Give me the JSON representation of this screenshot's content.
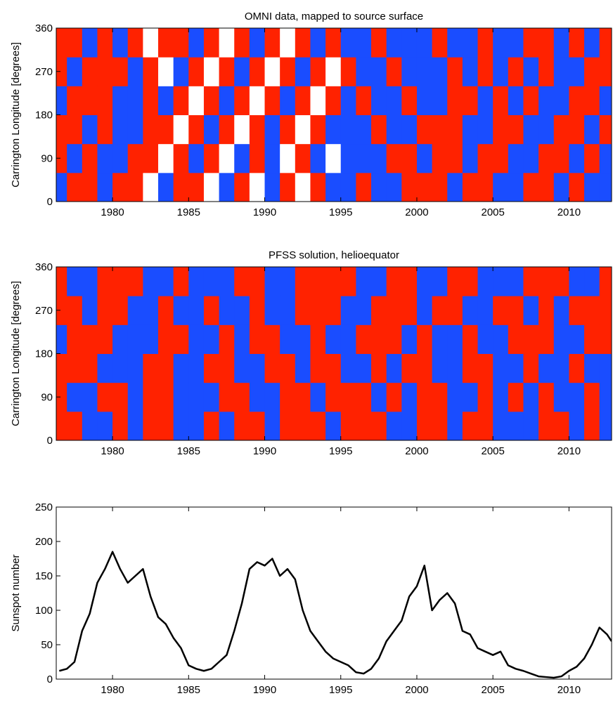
{
  "chart_data": [
    {
      "type": "heatmap",
      "title": "OMNI data, mapped to source surface",
      "y_label": "Carrington Longitude [degrees]",
      "xlim": [
        1976.3,
        2012.8
      ],
      "xticks": [
        1980,
        1985,
        1990,
        1995,
        2000,
        2005,
        2010
      ],
      "ylim": [
        0,
        360
      ],
      "yticks": [
        0,
        90,
        180,
        270,
        360
      ],
      "positive_color": "#ff2200",
      "negative_color": "#1a4dff",
      "zero_color": "#ffffff",
      "x_bins": [
        1976,
        1977,
        1978,
        1979,
        1980,
        1981,
        1982,
        1983,
        1984,
        1985,
        1986,
        1987,
        1988,
        1989,
        1990,
        1991,
        1992,
        1993,
        1994,
        1995,
        1996,
        1997,
        1998,
        1999,
        2000,
        2001,
        2002,
        2003,
        2004,
        2005,
        2006,
        2007,
        2008,
        2009,
        2010,
        2011,
        2012,
        2013
      ],
      "y_bins": [
        0,
        60,
        120,
        180,
        240,
        300,
        360
      ],
      "z": [
        [
          -1,
          1,
          1,
          -1,
          1,
          1,
          0,
          -1,
          1,
          1,
          0,
          -1,
          1,
          0,
          -1,
          1,
          0,
          1,
          -1,
          -1,
          1,
          -1,
          -1,
          1,
          1,
          1,
          -1,
          1,
          1,
          -1,
          -1,
          1,
          1,
          -1,
          1,
          -1,
          -1
        ],
        [
          1,
          -1,
          1,
          -1,
          -1,
          1,
          1,
          0,
          1,
          -1,
          1,
          0,
          -1,
          1,
          -1,
          0,
          1,
          -1,
          0,
          -1,
          -1,
          -1,
          1,
          1,
          -1,
          1,
          1,
          -1,
          1,
          1,
          -1,
          -1,
          1,
          1,
          -1,
          1,
          -1
        ],
        [
          1,
          1,
          -1,
          1,
          -1,
          -1,
          1,
          1,
          0,
          1,
          -1,
          1,
          0,
          1,
          -1,
          1,
          0,
          1,
          -1,
          -1,
          -1,
          1,
          -1,
          -1,
          1,
          1,
          1,
          -1,
          -1,
          1,
          1,
          -1,
          -1,
          1,
          1,
          -1,
          1
        ],
        [
          -1,
          1,
          1,
          1,
          -1,
          -1,
          1,
          -1,
          1,
          0,
          1,
          -1,
          1,
          0,
          1,
          -1,
          1,
          0,
          1,
          -1,
          1,
          -1,
          -1,
          1,
          -1,
          -1,
          1,
          1,
          -1,
          1,
          -1,
          1,
          -1,
          -1,
          1,
          1,
          -1
        ],
        [
          1,
          -1,
          1,
          1,
          1,
          -1,
          1,
          0,
          -1,
          1,
          0,
          1,
          -1,
          1,
          0,
          1,
          -1,
          1,
          0,
          1,
          -1,
          -1,
          1,
          -1,
          -1,
          -1,
          1,
          -1,
          1,
          -1,
          1,
          -1,
          1,
          -1,
          -1,
          1,
          1
        ],
        [
          1,
          1,
          -1,
          1,
          -1,
          1,
          0,
          1,
          1,
          -1,
          1,
          0,
          1,
          -1,
          1,
          0,
          1,
          -1,
          1,
          -1,
          -1,
          1,
          -1,
          -1,
          -1,
          1,
          -1,
          -1,
          1,
          -1,
          -1,
          1,
          1,
          -1,
          1,
          -1,
          1
        ]
      ]
    },
    {
      "type": "heatmap",
      "title": "PFSS solution, helioequator",
      "y_label": "Carrington Longitude [degrees]",
      "xlim": [
        1976.3,
        2012.8
      ],
      "xticks": [
        1980,
        1985,
        1990,
        1995,
        2000,
        2005,
        2010
      ],
      "ylim": [
        0,
        360
      ],
      "yticks": [
        0,
        90,
        180,
        270,
        360
      ],
      "positive_color": "#ff2200",
      "negative_color": "#1a4dff",
      "zero_color": "#ffffff",
      "x_bins": [
        1976,
        1977,
        1978,
        1979,
        1980,
        1981,
        1982,
        1983,
        1984,
        1985,
        1986,
        1987,
        1988,
        1989,
        1990,
        1991,
        1992,
        1993,
        1994,
        1995,
        1996,
        1997,
        1998,
        1999,
        2000,
        2001,
        2002,
        2003,
        2004,
        2005,
        2006,
        2007,
        2008,
        2009,
        2010,
        2011,
        2012,
        2013
      ],
      "y_bins": [
        0,
        60,
        120,
        180,
        240,
        300,
        360
      ],
      "z": [
        [
          1,
          1,
          -1,
          -1,
          1,
          -1,
          1,
          1,
          -1,
          -1,
          1,
          -1,
          1,
          1,
          -1,
          1,
          1,
          1,
          -1,
          1,
          1,
          1,
          -1,
          -1,
          1,
          1,
          -1,
          1,
          1,
          -1,
          -1,
          -1,
          1,
          1,
          -1,
          1,
          -1
        ],
        [
          1,
          -1,
          -1,
          1,
          1,
          -1,
          1,
          1,
          -1,
          -1,
          -1,
          1,
          1,
          -1,
          -1,
          1,
          1,
          -1,
          1,
          1,
          1,
          -1,
          1,
          -1,
          1,
          1,
          -1,
          -1,
          1,
          -1,
          1,
          -1,
          1,
          -1,
          -1,
          1,
          -1
        ],
        [
          1,
          1,
          1,
          -1,
          -1,
          -1,
          1,
          1,
          -1,
          -1,
          1,
          1,
          -1,
          -1,
          1,
          1,
          -1,
          1,
          1,
          -1,
          -1,
          1,
          -1,
          1,
          1,
          -1,
          -1,
          1,
          1,
          -1,
          -1,
          1,
          -1,
          -1,
          1,
          -1,
          -1
        ],
        [
          -1,
          1,
          1,
          1,
          -1,
          -1,
          -1,
          1,
          1,
          -1,
          -1,
          1,
          -1,
          1,
          1,
          -1,
          -1,
          1,
          -1,
          -1,
          1,
          1,
          1,
          -1,
          1,
          -1,
          -1,
          1,
          -1,
          -1,
          1,
          1,
          1,
          -1,
          -1,
          1,
          1
        ],
        [
          1,
          1,
          -1,
          1,
          1,
          -1,
          -1,
          1,
          -1,
          -1,
          1,
          -1,
          -1,
          1,
          -1,
          -1,
          1,
          1,
          1,
          -1,
          -1,
          1,
          1,
          1,
          -1,
          1,
          1,
          -1,
          -1,
          1,
          1,
          -1,
          1,
          -1,
          1,
          1,
          1
        ],
        [
          1,
          -1,
          -1,
          1,
          1,
          1,
          -1,
          -1,
          1,
          -1,
          -1,
          -1,
          1,
          1,
          -1,
          -1,
          1,
          1,
          1,
          1,
          -1,
          -1,
          1,
          1,
          -1,
          -1,
          1,
          1,
          -1,
          -1,
          -1,
          1,
          1,
          1,
          -1,
          -1,
          1
        ]
      ]
    },
    {
      "type": "line",
      "y_label": "Sunspot number",
      "color": "#000000",
      "xlim": [
        1976.3,
        2012.8
      ],
      "xticks": [
        1980,
        1985,
        1990,
        1995,
        2000,
        2005,
        2010
      ],
      "ylim": [
        0,
        250
      ],
      "yticks": [
        0,
        50,
        100,
        150,
        200,
        250
      ],
      "x": [
        1976.5,
        1977,
        1977.5,
        1978,
        1978.5,
        1979,
        1979.5,
        1980,
        1980.5,
        1981,
        1981.5,
        1982,
        1982.5,
        1983,
        1983.5,
        1984,
        1984.5,
        1985,
        1985.5,
        1986,
        1986.5,
        1987,
        1987.5,
        1988,
        1988.5,
        1989,
        1989.5,
        1990,
        1990.5,
        1991,
        1991.5,
        1992,
        1992.5,
        1993,
        1993.5,
        1994,
        1994.5,
        1995,
        1995.5,
        1996,
        1996.5,
        1997,
        1997.5,
        1998,
        1998.5,
        1999,
        1999.5,
        2000,
        2000.5,
        2001,
        2001.5,
        2002,
        2002.5,
        2003,
        2003.5,
        2004,
        2004.5,
        2005,
        2005.5,
        2006,
        2006.5,
        2007,
        2007.5,
        2008,
        2008.5,
        2009,
        2009.5,
        2010,
        2010.5,
        2011,
        2011.5,
        2012,
        2012.5,
        2012.8
      ],
      "values": [
        12,
        15,
        25,
        70,
        95,
        140,
        160,
        185,
        160,
        140,
        150,
        160,
        120,
        90,
        80,
        60,
        45,
        20,
        15,
        12,
        15,
        25,
        35,
        70,
        110,
        160,
        170,
        165,
        175,
        150,
        160,
        145,
        100,
        70,
        55,
        40,
        30,
        25,
        20,
        10,
        8,
        15,
        30,
        55,
        70,
        85,
        120,
        135,
        165,
        100,
        115,
        125,
        110,
        70,
        65,
        45,
        40,
        35,
        40,
        20,
        15,
        12,
        8,
        4,
        3,
        2,
        4,
        12,
        18,
        30,
        50,
        75,
        65,
        55
      ]
    }
  ]
}
